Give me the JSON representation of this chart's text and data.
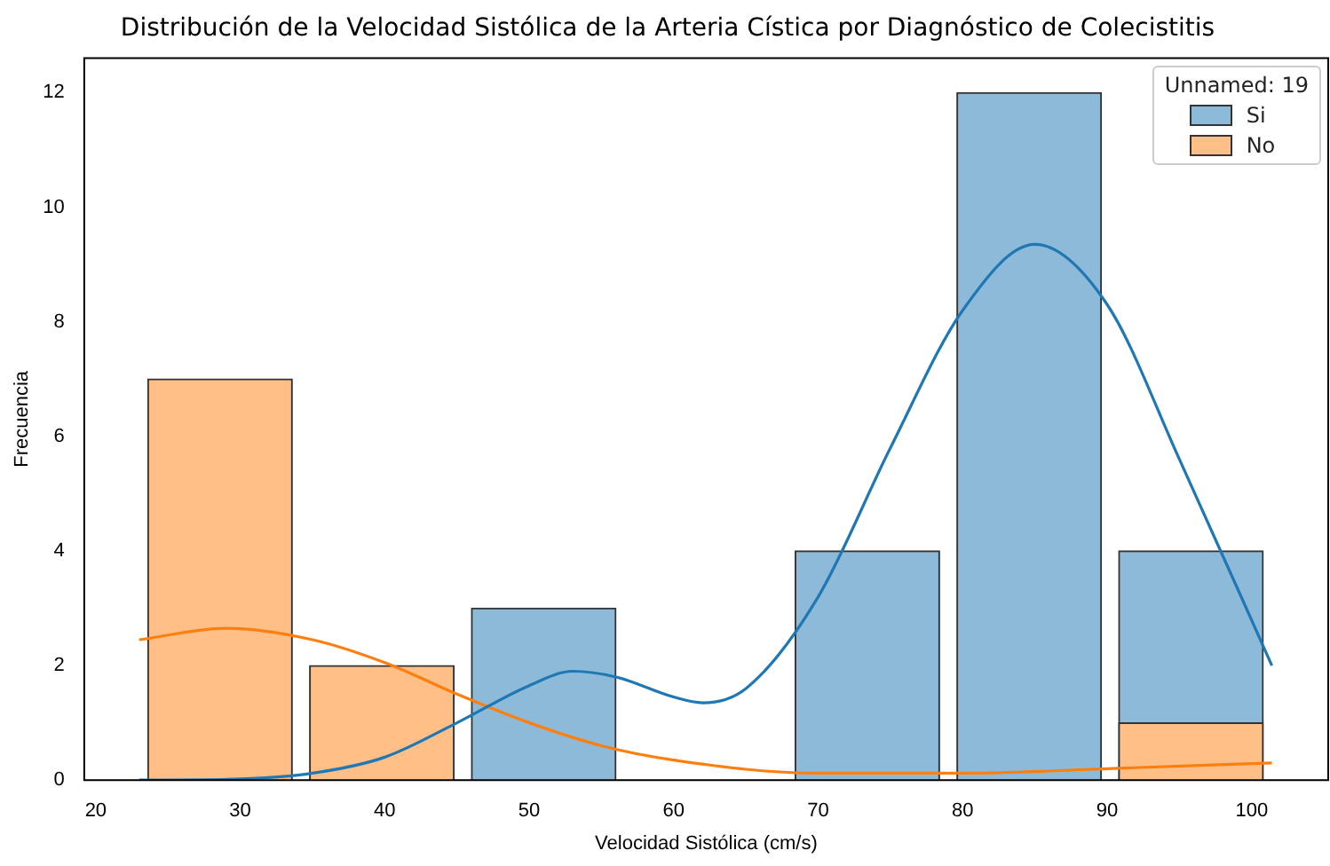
{
  "chart_data": {
    "type": "histogram",
    "title": "Distribución de la Velocidad Sistólica de la Arteria Cística por Diagnóstico de Colecistitis",
    "xlabel": "Velocidad Sistólica (cm/s)",
    "ylabel": "Frecuencia",
    "legend_title": "Unnamed: 19",
    "legend": "top right",
    "grid": false,
    "bins": [
      23,
      34.2,
      45.4,
      56.6,
      67.8,
      79,
      90.2,
      101.4
    ],
    "xlim": [
      19.2,
      105.3
    ],
    "xticks": [
      20,
      30,
      40,
      50,
      60,
      70,
      80,
      90,
      100
    ],
    "ylim": [
      0,
      12.6
    ],
    "yticks": [
      0,
      2,
      4,
      6,
      8,
      10,
      12
    ],
    "series": [
      {
        "name": "Si",
        "color": "#8ebad9",
        "values": [
          0,
          0,
          3,
          0,
          4,
          12,
          4
        ]
      },
      {
        "name": "No",
        "color": "#ffbf86",
        "values": [
          7,
          2,
          0,
          0,
          0,
          0,
          1
        ]
      },
      {
        "type": "line",
        "color": "#1f77b4",
        "x": [
          23,
          30,
          35,
          40,
          45,
          50,
          53,
          56,
          60,
          62,
          65,
          70,
          75,
          80,
          85,
          90,
          95,
          101.4
        ],
        "values": [
          0,
          0.02,
          0.12,
          0.4,
          1,
          1.65,
          1.9,
          1.8,
          1.45,
          1.35,
          1.6,
          3.2,
          5.8,
          8.2,
          9.35,
          8.3,
          5.6,
          2
        ]
      },
      {
        "type": "line",
        "color": "#ff7f0e",
        "x": [
          23,
          29,
          35,
          40,
          45,
          50,
          55,
          60,
          70,
          80,
          90,
          101.4
        ],
        "values": [
          2.45,
          2.65,
          2.45,
          2.05,
          1.5,
          1,
          0.6,
          0.35,
          0.12,
          0.12,
          0.2,
          0.3
        ]
      }
    ]
  }
}
